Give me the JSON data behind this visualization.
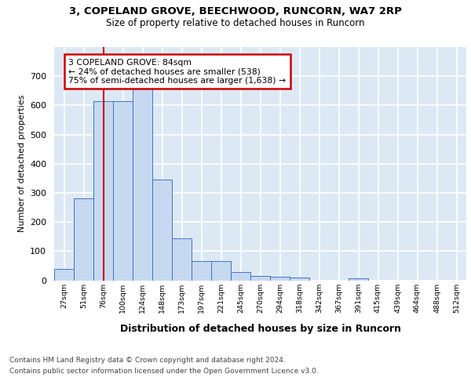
{
  "title_line1": "3, COPELAND GROVE, BEECHWOOD, RUNCORN, WA7 2RP",
  "title_line2": "Size of property relative to detached houses in Runcorn",
  "xlabel": "Distribution of detached houses by size in Runcorn",
  "ylabel": "Number of detached properties",
  "bin_labels": [
    "27sqm",
    "51sqm",
    "76sqm",
    "100sqm",
    "124sqm",
    "148sqm",
    "173sqm",
    "197sqm",
    "221sqm",
    "245sqm",
    "270sqm",
    "294sqm",
    "318sqm",
    "342sqm",
    "367sqm",
    "391sqm",
    "415sqm",
    "439sqm",
    "464sqm",
    "488sqm",
    "512sqm"
  ],
  "bar_values": [
    40,
    280,
    615,
    615,
    660,
    345,
    145,
    65,
    65,
    28,
    15,
    12,
    10,
    0,
    0,
    8,
    0,
    0,
    0,
    0,
    0
  ],
  "bar_color": "#c6d9f0",
  "bar_edge_color": "#4472c4",
  "vline_x": 2.0,
  "annotation_text": "3 COPELAND GROVE: 84sqm\n← 24% of detached houses are smaller (538)\n75% of semi-detached houses are larger (1,638) →",
  "annotation_box_color": "#ffffff",
  "annotation_box_edge_color": "#cc0000",
  "vline_color": "#cc0000",
  "ylim": [
    0,
    800
  ],
  "yticks": [
    0,
    100,
    200,
    300,
    400,
    500,
    600,
    700,
    800
  ],
  "background_color": "#dce9f5",
  "grid_color": "#ffffff",
  "footer_line1": "Contains HM Land Registry data © Crown copyright and database right 2024.",
  "footer_line2": "Contains public sector information licensed under the Open Government Licence v3.0."
}
